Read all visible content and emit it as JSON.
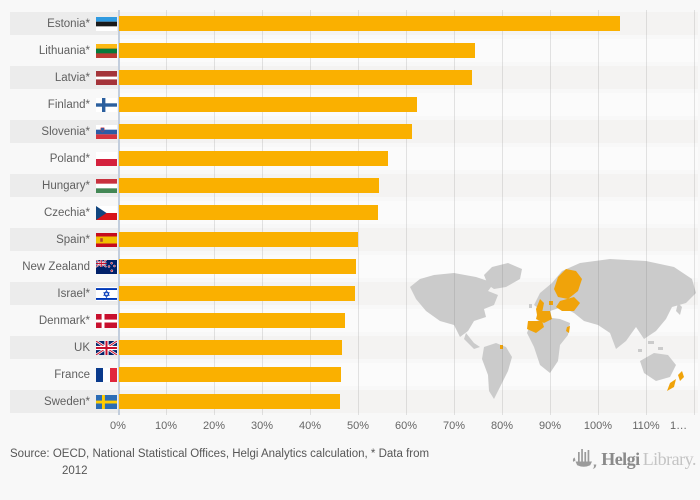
{
  "chart_data": {
    "type": "bar",
    "orientation": "horizontal",
    "categories": [
      "Estonia*",
      "Lithuania*",
      "Latvia*",
      "Finland*",
      "Slovenia*",
      "Poland*",
      "Hungary*",
      "Czechia*",
      "Spain*",
      "New Zealand",
      "Israel*",
      "Denmark*",
      "UK",
      "France",
      "Sweden*"
    ],
    "values": [
      104.3,
      74.2,
      73.6,
      62.1,
      61.1,
      56.0,
      54.2,
      54.0,
      49.7,
      49.4,
      49.2,
      47.0,
      46.4,
      46.3,
      46.1
    ],
    "unit": "%",
    "flag_codes": [
      "ee",
      "lt",
      "lv",
      "fi",
      "si",
      "pl",
      "hu",
      "cz",
      "es",
      "nz",
      "il",
      "dk",
      "gb",
      "fr",
      "se"
    ],
    "flag_names": [
      "estonia",
      "lithuania",
      "latvia",
      "finland",
      "slovenia",
      "poland",
      "hungary",
      "czechia",
      "spain",
      "new-zealand",
      "israel",
      "denmark",
      "uk",
      "france",
      "sweden"
    ],
    "xlim": [
      0,
      120
    ],
    "x_ticks": [
      "0%",
      "10%",
      "20%",
      "30%",
      "40%",
      "50%",
      "60%",
      "70%",
      "80%",
      "90%",
      "100%",
      "110%",
      "1…"
    ],
    "grid": true,
    "bar_color": "#FAB000",
    "legend": "none",
    "row_stripe_color": "#ececec"
  },
  "watermark": {
    "land_color": "#cbcbcb",
    "highlight_color": "#F0A30A"
  },
  "footer": {
    "source_text": "Source: OECD, National Statistical Offices, Helgi Analytics calculation, * Data from",
    "source_text_line2": "2012",
    "logo": {
      "name_bold": "Helgi",
      "name_light": "Library."
    }
  }
}
